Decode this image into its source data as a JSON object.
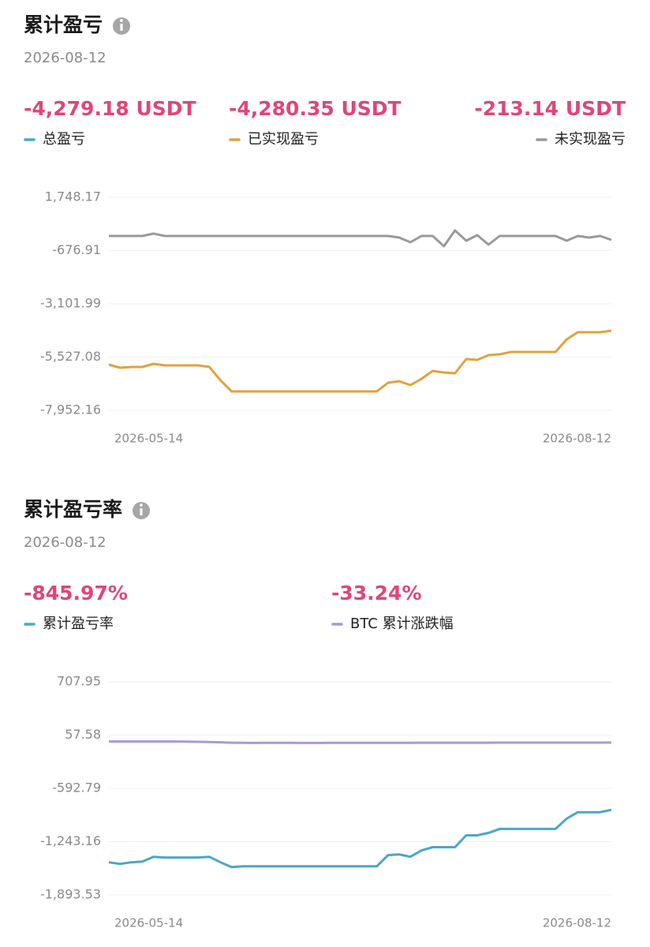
{
  "chart_data": [
    {
      "type": "line",
      "title": "累计盈亏",
      "date": "2026-08-12",
      "series": [
        {
          "name": "总盈亏",
          "color": "#4aa8c6",
          "value": -4279.18,
          "value_label": "-4,279.18 USDT"
        },
        {
          "name": "已实现盈亏",
          "color": "#e0a33e",
          "value": -4280.35,
          "value_label": "-4,280.35 USDT",
          "values": [
            -5868,
            -6012,
            -5976,
            -5976,
            -5832,
            -5904,
            -5904,
            -5904,
            -5904,
            -5976,
            -6587,
            -7090,
            -7090,
            -7090,
            -7090,
            -7090,
            -7090,
            -7090,
            -7090,
            -7090,
            -7090,
            -7090,
            -7090,
            -7090,
            -7090,
            -6695,
            -6623,
            -6802,
            -6515,
            -6156,
            -6228,
            -6264,
            -5617,
            -5653,
            -5437,
            -5401,
            -5294,
            -5294,
            -5294,
            -5294,
            -5294,
            -4719,
            -4395,
            -4395,
            -4395,
            -4324
          ]
        },
        {
          "name": "未实现盈亏",
          "color": "#9a9a9a",
          "value": -213.14,
          "value_label": "-213.14 USDT",
          "values": [
            -12,
            -12,
            -12,
            -12,
            95,
            -12,
            -12,
            -12,
            -12,
            -12,
            -12,
            -12,
            -12,
            -12,
            -12,
            -12,
            -12,
            -12,
            -12,
            -12,
            -12,
            -12,
            -12,
            -12,
            -12,
            -12,
            -84,
            -300,
            -12,
            -12,
            -479,
            239,
            -228,
            24,
            -408,
            -12,
            -12,
            -12,
            -12,
            -12,
            -12,
            -228,
            -12,
            -84,
            -12,
            -192
          ]
        }
      ],
      "categories": [
        "2026-05-14",
        null,
        null,
        null,
        null,
        null,
        null,
        null,
        null,
        null,
        null,
        null,
        null,
        null,
        null,
        null,
        null,
        null,
        null,
        null,
        null,
        null,
        null,
        null,
        null,
        null,
        null,
        null,
        null,
        null,
        null,
        null,
        null,
        null,
        null,
        null,
        null,
        null,
        null,
        null,
        null,
        null,
        null,
        null,
        null,
        "2026-08-12"
      ],
      "ylim": [
        -7952.16,
        1748.17
      ],
      "yticks": [
        {
          "value": 1748.17,
          "label": "1,748.17"
        },
        -676.91,
        {
          "value": -3101.99,
          "label": "-3,101.99"
        },
        {
          "value": -5527.08,
          "label": "-5,527.08"
        },
        {
          "value": -7952.16,
          "label": "-7,952.16"
        }
      ],
      "grid": true
    },
    {
      "type": "line",
      "title": "累计盈亏率",
      "date": "2026-08-12",
      "series": [
        {
          "name": "累计盈亏率",
          "color": "#4aa8c6",
          "value": -845.97,
          "value_label": "-845.97%",
          "values": [
            -1496,
            -1515,
            -1496,
            -1486,
            -1428,
            -1437,
            -1437,
            -1437,
            -1437,
            -1428,
            -1496,
            -1554,
            -1544,
            -1544,
            -1544,
            -1544,
            -1544,
            -1544,
            -1544,
            -1544,
            -1544,
            -1544,
            -1544,
            -1544,
            -1544,
            -1408,
            -1398,
            -1428,
            -1350,
            -1311,
            -1311,
            -1311,
            -1166,
            -1166,
            -1136,
            -1088,
            -1088,
            -1088,
            -1088,
            -1088,
            -1088,
            -962,
            -884,
            -884,
            -884,
            -855
          ]
        },
        {
          "name": "BTC 累计涨跌幅",
          "color": "#a998dc",
          "value": -33.24,
          "value_label": "-33.24%",
          "values": [
            -20,
            -20,
            -20,
            -20,
            -20,
            -20,
            -20,
            -22,
            -24,
            -26,
            -30,
            -35,
            -37,
            -38,
            -37,
            -36,
            -37,
            -38,
            -38,
            -38,
            -37,
            -37,
            -37,
            -37,
            -37,
            -36,
            -36,
            -36,
            -35,
            -35,
            -35,
            -35,
            -35,
            -35,
            -35,
            -34,
            -34,
            -34,
            -34,
            -34,
            -34,
            -34,
            -34,
            -34,
            -34,
            -33
          ]
        }
      ],
      "categories": [
        "2026-05-14",
        null,
        null,
        null,
        null,
        null,
        null,
        null,
        null,
        null,
        null,
        null,
        null,
        null,
        null,
        null,
        null,
        null,
        null,
        null,
        null,
        null,
        null,
        null,
        null,
        null,
        null,
        null,
        null,
        null,
        null,
        null,
        null,
        null,
        null,
        null,
        null,
        null,
        null,
        null,
        null,
        null,
        null,
        null,
        null,
        "2026-08-12"
      ],
      "ylim": [
        -1893.53,
        707.95
      ],
      "yticks": [
        707.95,
        57.58,
        -592.79,
        {
          "value": -1243.16,
          "label": "-1,243.16"
        },
        {
          "value": -1893.53,
          "label": "-1,893.53"
        }
      ],
      "grid": true
    }
  ]
}
